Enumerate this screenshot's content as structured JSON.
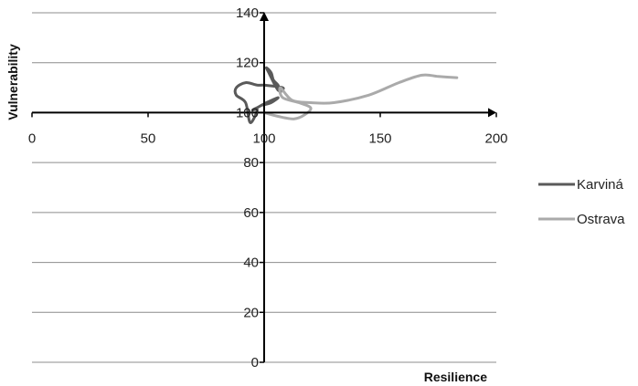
{
  "chart_data": {
    "type": "line",
    "title": "",
    "xlabel": "Resilience",
    "ylabel": "Vulnerability",
    "xlim": [
      0,
      200
    ],
    "ylim": [
      0,
      140
    ],
    "x_ticks": [
      0,
      50,
      100,
      150,
      200
    ],
    "y_ticks": [
      0,
      20,
      40,
      60,
      80,
      100,
      120,
      140
    ],
    "x_axis_crosses_y_at": 100,
    "y_axis_crosses_x_at": 100,
    "grid": "horizontal",
    "legend": "right",
    "series": [
      {
        "name": "Karviná",
        "color": "#5a5a5a",
        "smooth": true,
        "points": [
          [
            99,
            103
          ],
          [
            103,
            104
          ],
          [
            106,
            106
          ],
          [
            101,
            104
          ],
          [
            97,
            102
          ],
          [
            95,
            101
          ],
          [
            97,
            101
          ],
          [
            94,
            96
          ],
          [
            92,
            104
          ],
          [
            88,
            107
          ],
          [
            88,
            110
          ],
          [
            92,
            112
          ],
          [
            97,
            111
          ],
          [
            100,
            111
          ],
          [
            108,
            110
          ],
          [
            106,
            109
          ],
          [
            102,
            116
          ],
          [
            101,
            118
          ],
          [
            103,
            116
          ],
          [
            104,
            113
          ],
          [
            106,
            111
          ],
          [
            107,
            108
          ]
        ]
      },
      {
        "name": "Ostrava",
        "color": "#aaaaaa",
        "smooth": true,
        "points": [
          [
            100,
            100
          ],
          [
            106,
            98.5
          ],
          [
            113,
            97.5
          ],
          [
            118,
            99.5
          ],
          [
            120,
            102
          ],
          [
            115,
            104
          ],
          [
            108,
            106
          ],
          [
            107,
            110
          ],
          [
            112,
            105
          ],
          [
            120,
            104
          ],
          [
            130,
            104
          ],
          [
            145,
            107
          ],
          [
            158,
            112
          ],
          [
            168,
            115
          ],
          [
            175,
            114.5
          ],
          [
            183,
            114
          ]
        ]
      }
    ]
  }
}
